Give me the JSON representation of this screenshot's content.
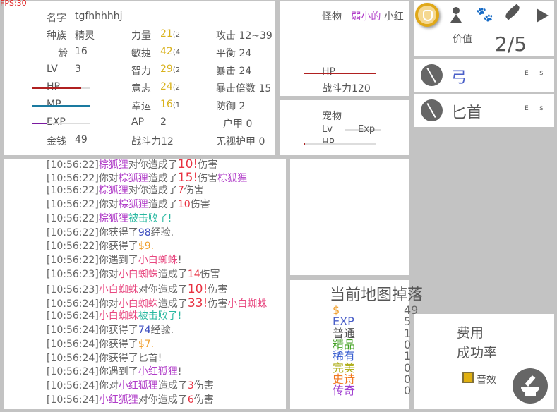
{
  "fps": "FPS:30",
  "stats": {
    "name_label": "名字",
    "name": "tgfhhhhhj",
    "race_label": "种族",
    "race": "精灵",
    "age_label": "龄",
    "age": "16",
    "lv_label": "LV",
    "lv": "3",
    "hp_label": "HP",
    "hp_pct": 85,
    "mp_label": "MP",
    "mp_pct": 100,
    "exp_label": "EXP",
    "exp_pct": 25,
    "gold_label": "金钱",
    "gold": "49",
    "str_label": "力量",
    "str": "21",
    "str_extra": "(2",
    "agi_label": "敏捷",
    "agi": "42",
    "agi_extra": "(4",
    "int_label": "智力",
    "int": "29",
    "int_extra": "(2",
    "wil_label": "意志",
    "wil": "24",
    "wil_extra": "(2",
    "luck_label": "幸运",
    "luck": "16",
    "luck_extra": "(1",
    "ap_label": "AP",
    "ap": "2",
    "power_label": "战斗力",
    "power": "12",
    "atk_label": "攻击",
    "atk": "12~39",
    "bal_label": "平衡",
    "bal": "24",
    "crit_label": "暴击",
    "crit": "24",
    "critx_label": "暴击倍数",
    "critx": "15",
    "def_label": "防御",
    "def": "2",
    "armor_label": "户甲",
    "armor": "0",
    "pierce_label": "无视护甲",
    "pierce": "0"
  },
  "monster": {
    "label": "怪物",
    "prefix": "弱小的",
    "name": "小红",
    "hp_label": "HP",
    "hp_pct": 100,
    "power_label": "战斗力",
    "power": "120"
  },
  "pet": {
    "label": "宠物",
    "lv_label": "Lv",
    "exp_label": "Exp",
    "hp_label": "HP"
  },
  "right": {
    "tabs": [
      "clock-icon",
      "person-icon",
      "paw-icon",
      "feather-icon",
      "play-icon"
    ],
    "value_label": "价值",
    "value": "2/5",
    "items": [
      {
        "name": "弓",
        "icon": "bow-icon",
        "e": "E",
        "s": "$",
        "color": "#4a5fc8"
      },
      {
        "name": "匕首",
        "icon": "dagger-icon",
        "e": "E",
        "s": "$",
        "color": "#555555"
      }
    ]
  },
  "log": [
    [
      [
        "[10:56:22]",
        "#666"
      ],
      [
        "棕狐狸",
        "#b03cc8"
      ],
      [
        "对你造成了",
        "#666"
      ],
      [
        "10!",
        "#e83040",
        1
      ],
      [
        "伤害",
        "#666"
      ]
    ],
    [
      [
        "[10:56:22]",
        "#666"
      ],
      [
        "你对",
        "#666"
      ],
      [
        "棕狐狸",
        "#b03cc8"
      ],
      [
        "造成了",
        "#666"
      ],
      [
        "15!",
        "#e83040",
        1
      ],
      [
        "伤害",
        "#666"
      ],
      [
        "棕狐狸",
        "#b03cc8"
      ]
    ],
    [
      [
        "[10:56:22]",
        "#666"
      ],
      [
        "棕狐狸",
        "#b03cc8"
      ],
      [
        "对你造成了",
        "#666"
      ],
      [
        "7",
        "#e83040"
      ],
      [
        "伤害",
        "#666"
      ]
    ],
    [
      [
        "[10:56:22]",
        "#666"
      ],
      [
        "你对",
        "#666"
      ],
      [
        "棕狐狸",
        "#b03cc8"
      ],
      [
        "造成了",
        "#666"
      ],
      [
        "10",
        "#e83040"
      ],
      [
        "伤害",
        "#666"
      ]
    ],
    [
      [
        "[10:56:22]",
        "#666"
      ],
      [
        "棕狐狸",
        "#b03cc8"
      ],
      [
        "被击败了!",
        "#28b8a0"
      ]
    ],
    [
      [
        "[10:56:22]",
        "#666"
      ],
      [
        "你获得了",
        "#666"
      ],
      [
        "98",
        "#4050c0"
      ],
      [
        "经验.",
        "#666"
      ]
    ],
    [
      [
        "[10:56:22]",
        "#666"
      ],
      [
        "你获得了",
        "#666"
      ],
      [
        "$9.",
        "#f0a030"
      ]
    ],
    [
      [
        "[10:56:22]",
        "#666"
      ],
      [
        "你遇到了",
        "#666"
      ],
      [
        "小白蜘蛛",
        "#e84880"
      ],
      [
        "!",
        "#666"
      ]
    ],
    [
      [
        "[10:56:23]",
        "#666"
      ],
      [
        "你对",
        "#666"
      ],
      [
        "小白蜘蛛",
        "#e84880"
      ],
      [
        "造成了",
        "#666"
      ],
      [
        "14",
        "#e83040"
      ],
      [
        "伤害",
        "#666"
      ]
    ],
    [
      [
        "[10:56:23]",
        "#666"
      ],
      [
        "小白蜘蛛",
        "#e84880"
      ],
      [
        "对你造成了",
        "#666"
      ],
      [
        "10!",
        "#e83040",
        1
      ],
      [
        "伤害",
        "#666"
      ]
    ],
    [
      [
        "[10:56:24]",
        "#666"
      ],
      [
        "你对",
        "#666"
      ],
      [
        "小白蜘蛛",
        "#e84880"
      ],
      [
        "造成了",
        "#666"
      ],
      [
        "33!",
        "#e83040",
        1
      ],
      [
        "伤害",
        "#666"
      ],
      [
        "小白蜘蛛",
        "#e84880"
      ]
    ],
    [
      [
        "[10:56:24]",
        "#666"
      ],
      [
        "小白蜘蛛",
        "#e84880"
      ],
      [
        "被击败了!",
        "#28b8a0"
      ]
    ],
    [
      [
        "[10:56:24]",
        "#666"
      ],
      [
        "你获得了",
        "#666"
      ],
      [
        "74",
        "#4050c0"
      ],
      [
        "经验.",
        "#666"
      ]
    ],
    [
      [
        "[10:56:24]",
        "#666"
      ],
      [
        "你获得了",
        "#666"
      ],
      [
        "$7.",
        "#f0a030"
      ]
    ],
    [
      [
        "[10:56:24]",
        "#666"
      ],
      [
        "你获得了匕首!",
        "#666"
      ]
    ],
    [
      [
        "[10:56:24]",
        "#666"
      ],
      [
        "你遇到了",
        "#666"
      ],
      [
        "小红狐狸",
        "#b03cc8"
      ],
      [
        "!",
        "#666"
      ]
    ],
    [
      [
        "[10:56:24]",
        "#666"
      ],
      [
        "你对",
        "#666"
      ],
      [
        "小红狐狸",
        "#b03cc8"
      ],
      [
        "造成了",
        "#666"
      ],
      [
        "3",
        "#e83040"
      ],
      [
        "伤害",
        "#666"
      ]
    ],
    [
      [
        "[10:56:24]",
        "#666"
      ],
      [
        "小红狐狸",
        "#b03cc8"
      ],
      [
        "对你造成了",
        "#666"
      ],
      [
        "6",
        "#e83040"
      ],
      [
        "伤害",
        "#666"
      ]
    ]
  ],
  "drops": {
    "title": "当前地图掉落",
    "rows": [
      {
        "label": "$",
        "value": "49",
        "color": "#f0a030"
      },
      {
        "label": "EXP",
        "value": "5",
        "color": "#4a5fc8"
      },
      {
        "label": "普通",
        "value": "1",
        "color": "#555555"
      },
      {
        "label": "精品",
        "value": "0",
        "color": "#40a020"
      },
      {
        "label": "稀有",
        "value": "1",
        "color": "#3a5fd0"
      },
      {
        "label": "完美",
        "value": "0",
        "color": "#b0b020"
      },
      {
        "label": "史诗",
        "value": "0",
        "color": "#f07820"
      },
      {
        "label": "传奇",
        "value": "0",
        "color": "#a040d0"
      }
    ]
  },
  "forge": {
    "cost_label": "费用",
    "rate_label": "成功率",
    "sound_label": "音效",
    "sound_on": true,
    "sound_color": "#e0b010",
    "anvil_icon": "anvil-icon"
  }
}
